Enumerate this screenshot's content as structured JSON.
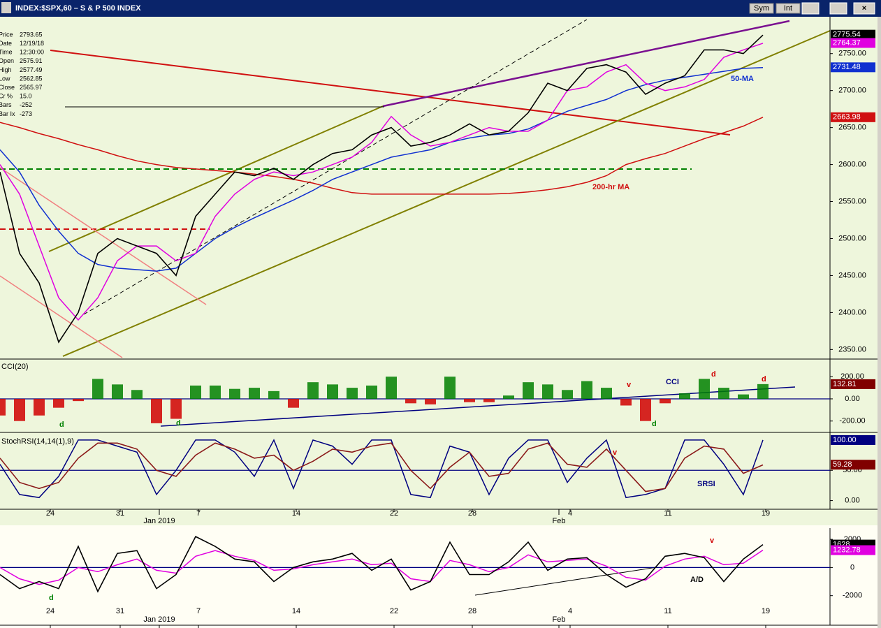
{
  "window": {
    "buttons": [
      "Sym",
      "Int"
    ]
  },
  "info": [
    {
      "label": "Price",
      "value": "2793.65"
    },
    {
      "label": "Date",
      "value": "12/19/18"
    },
    {
      "label": "Time",
      "value": "12:30:00"
    },
    {
      "label": "Open",
      "value": "2575.91"
    },
    {
      "label": "High",
      "value": "2577.49"
    },
    {
      "label": "Low",
      "value": "2562.85"
    },
    {
      "label": "Close",
      "value": "2565.97"
    },
    {
      "label": "Cr %",
      "value": "15.0"
    },
    {
      "label": "Bars",
      "value": "-252"
    },
    {
      "label": "Bar Ix",
      "value": "-273"
    }
  ],
  "chart_data": [
    {
      "type": "line",
      "title": "INDEX:$SPX,60 – S & P 500 INDEX",
      "xlim": [
        0,
        297
      ],
      "ylim": [
        2339,
        2796
      ],
      "yticks": [
        {
          "value": 2350,
          "label": "2350.00"
        },
        {
          "value": 2400,
          "label": "2400.00"
        },
        {
          "value": 2450,
          "label": "2450.00"
        },
        {
          "value": 2500,
          "label": "2500.00"
        },
        {
          "value": 2550,
          "label": "2550.00"
        },
        {
          "value": 2600,
          "label": "2600.00"
        },
        {
          "value": 2650,
          "label": "2650.00"
        },
        {
          "value": 2700,
          "label": "2700.00"
        },
        {
          "value": 2750,
          "label": "2750.00"
        }
      ],
      "x": [
        0,
        7,
        14,
        21,
        28,
        35,
        42,
        49,
        56,
        63,
        70,
        77,
        84,
        91,
        98,
        105,
        112,
        119,
        126,
        133,
        140,
        147,
        154,
        161,
        168,
        175,
        182,
        189,
        196,
        203,
        210,
        217,
        224,
        231,
        238,
        245,
        252,
        259,
        266,
        273
      ],
      "series": [
        {
          "color": "#d01010",
          "values": [
            2657,
            2650,
            2642,
            2635,
            2627,
            2620,
            2612,
            2605,
            2600,
            2596,
            2594,
            2592,
            2590,
            2587,
            2584,
            2580,
            2575,
            2568,
            2562,
            2560,
            2560,
            2560,
            2560,
            2560,
            2560,
            2560,
            2561,
            2563,
            2566,
            2570,
            2576,
            2585,
            2600,
            2608,
            2615,
            2625,
            2635,
            2643,
            2652,
            2664
          ]
        },
        {
          "color": "#1030d0",
          "values": [
            2620,
            2590,
            2545,
            2510,
            2480,
            2465,
            2460,
            2458,
            2456,
            2460,
            2480,
            2500,
            2515,
            2528,
            2540,
            2552,
            2565,
            2580,
            2590,
            2600,
            2610,
            2615,
            2620,
            2630,
            2636,
            2640,
            2642,
            2648,
            2660,
            2672,
            2680,
            2688,
            2700,
            2708,
            2714,
            2718,
            2722,
            2726,
            2730,
            2731
          ]
        },
        {
          "color": "#e000e0",
          "values": [
            2600,
            2560,
            2490,
            2420,
            2390,
            2420,
            2470,
            2490,
            2490,
            2470,
            2480,
            2530,
            2560,
            2580,
            2590,
            2585,
            2590,
            2600,
            2610,
            2630,
            2665,
            2640,
            2625,
            2630,
            2640,
            2650,
            2645,
            2645,
            2660,
            2700,
            2705,
            2725,
            2735,
            2710,
            2700,
            2705,
            2715,
            2745,
            2755,
            2764
          ]
        },
        {
          "color": "#000000",
          "values": [
            2590,
            2480,
            2440,
            2360,
            2400,
            2480,
            2500,
            2490,
            2480,
            2450,
            2530,
            2560,
            2590,
            2585,
            2595,
            2580,
            2600,
            2615,
            2620,
            2640,
            2650,
            2625,
            2630,
            2640,
            2655,
            2640,
            2645,
            2670,
            2710,
            2700,
            2730,
            2735,
            2725,
            2695,
            2710,
            2720,
            2755,
            2755,
            2750,
            2775
          ]
        }
      ],
      "readouts": [
        {
          "value": 2775.54,
          "color": "#000000"
        },
        {
          "value": 2764.37,
          "color": "#e000e0"
        },
        {
          "value": 2731.48,
          "color": "#1030d0"
        },
        {
          "value": 2663.98,
          "color": "#d01010"
        }
      ],
      "annotations": [
        {
          "text": "50-MA",
          "color": "#1030d0"
        },
        {
          "text": "200-hr MA",
          "color": "#d01010"
        }
      ]
    },
    {
      "type": "bar",
      "title": "CCI(20)",
      "xlim": [
        0,
        297
      ],
      "ylim": [
        -290,
        340
      ],
      "yticks": [
        {
          "value": 200,
          "label": "200.00"
        },
        {
          "value": 0,
          "label": "0.00"
        },
        {
          "value": -200,
          "label": "-200.00"
        }
      ],
      "ref_lines": [
        0
      ],
      "pos_color": "#008000",
      "neg_color": "#d00000",
      "x": [
        0,
        7,
        14,
        21,
        28,
        35,
        42,
        49,
        56,
        63,
        70,
        77,
        84,
        91,
        98,
        105,
        112,
        119,
        126,
        133,
        140,
        147,
        154,
        161,
        168,
        175,
        182,
        189,
        196,
        203,
        210,
        217,
        224,
        231,
        238,
        245,
        252,
        259,
        266,
        273
      ],
      "values": [
        -150,
        -200,
        -150,
        -80,
        -20,
        180,
        130,
        80,
        -220,
        -180,
        120,
        120,
        90,
        100,
        70,
        -80,
        150,
        130,
        100,
        120,
        200,
        -40,
        -50,
        200,
        -30,
        -30,
        30,
        150,
        130,
        80,
        160,
        100,
        -60,
        -200,
        -40,
        50,
        180,
        100,
        40,
        133
      ],
      "readouts": [
        {
          "value": 132.81,
          "color": "#800000"
        }
      ],
      "annotations": [
        {
          "text": "CCI",
          "color": "#000080"
        },
        {
          "text": "d",
          "color": "#d00000"
        },
        {
          "text": "d",
          "color": "#d00000"
        },
        {
          "text": "v",
          "color": "#d00000"
        },
        {
          "text": "d",
          "color": "#008000"
        },
        {
          "text": "d",
          "color": "#008000"
        },
        {
          "text": "d",
          "color": "#008000"
        }
      ]
    },
    {
      "type": "line",
      "title": "StochRSI(14,14(1),9)",
      "xlim": [
        0,
        297
      ],
      "ylim": [
        -12,
        108
      ],
      "yticks": [
        {
          "value": 50,
          "label": "50.00"
        },
        {
          "value": 0,
          "label": "0.00"
        }
      ],
      "ref_lines": [
        50
      ],
      "xticks": [
        {
          "value": 18,
          "label": "24"
        },
        {
          "value": 43,
          "label": "31"
        },
        {
          "value": 71,
          "label": "7"
        },
        {
          "value": 106,
          "label": "14"
        },
        {
          "value": 141,
          "label": "22"
        },
        {
          "value": 169,
          "label": "28"
        },
        {
          "value": 204,
          "label": "4"
        },
        {
          "value": 239,
          "label": "11"
        },
        {
          "value": 274,
          "label": "19"
        }
      ],
      "months": [
        {
          "value": 57,
          "label": "Jan 2019"
        },
        {
          "value": 200,
          "label": "Feb"
        }
      ],
      "x": [
        0,
        7,
        14,
        21,
        28,
        35,
        42,
        49,
        56,
        63,
        70,
        77,
        84,
        91,
        98,
        105,
        112,
        119,
        126,
        133,
        140,
        147,
        154,
        161,
        168,
        175,
        182,
        189,
        196,
        203,
        210,
        217,
        224,
        231,
        238,
        245,
        252,
        259,
        266,
        273
      ],
      "series": [
        {
          "color": "#000080",
          "values": [
            60,
            10,
            5,
            40,
            100,
            100,
            90,
            80,
            10,
            50,
            100,
            100,
            80,
            40,
            100,
            20,
            100,
            90,
            60,
            100,
            100,
            10,
            5,
            90,
            80,
            10,
            70,
            100,
            100,
            30,
            70,
            100,
            5,
            10,
            20,
            100,
            100,
            60,
            10,
            100
          ]
        },
        {
          "color": "#8b1a1a",
          "values": [
            70,
            30,
            20,
            30,
            70,
            95,
            95,
            85,
            50,
            40,
            75,
            95,
            85,
            70,
            75,
            50,
            65,
            85,
            80,
            90,
            95,
            50,
            20,
            55,
            80,
            40,
            45,
            85,
            95,
            60,
            55,
            85,
            50,
            15,
            20,
            70,
            90,
            85,
            45,
            59
          ]
        }
      ],
      "readouts": [
        {
          "value": 100,
          "label": "100.00",
          "color": "#000080"
        },
        {
          "value": 59.28,
          "color": "#800000"
        }
      ],
      "annotations": [
        {
          "text": "v",
          "color": "#d00000"
        },
        {
          "text": "SRSI",
          "color": "#000080"
        }
      ]
    },
    {
      "type": "line",
      "xlim": [
        0,
        297
      ],
      "ylim": [
        -4000,
        2600
      ],
      "yticks": [
        2000,
        0,
        -2000
      ],
      "ref_lines": [
        0
      ],
      "xticks": [
        {
          "value": 18,
          "label": "24"
        },
        {
          "value": 43,
          "label": "31"
        },
        {
          "value": 71,
          "label": "7"
        },
        {
          "value": 106,
          "label": "14"
        },
        {
          "value": 141,
          "label": "22"
        },
        {
          "value": 169,
          "label": "28"
        },
        {
          "value": 204,
          "label": "4"
        },
        {
          "value": 239,
          "label": "11"
        },
        {
          "value": 274,
          "label": "19"
        }
      ],
      "months": [
        {
          "value": 57,
          "label": "Jan 2019"
        },
        {
          "value": 200,
          "label": "Feb"
        }
      ],
      "x": [
        0,
        7,
        14,
        21,
        28,
        35,
        42,
        49,
        56,
        63,
        70,
        77,
        84,
        91,
        98,
        105,
        112,
        119,
        126,
        133,
        140,
        147,
        154,
        161,
        168,
        175,
        182,
        189,
        196,
        203,
        210,
        217,
        224,
        231,
        238,
        245,
        252,
        259,
        266,
        273
      ],
      "series": [
        {
          "color": "#e000e0",
          "values": [
            0,
            -800,
            -1200,
            -900,
            0,
            -300,
            200,
            600,
            -200,
            -400,
            800,
            1200,
            800,
            500,
            -200,
            -100,
            200,
            400,
            600,
            200,
            300,
            -800,
            -1000,
            500,
            200,
            -300,
            0,
            900,
            400,
            500,
            600,
            100,
            -700,
            -900,
            100,
            600,
            800,
            200,
            300,
            1233
          ]
        },
        {
          "color": "#000000",
          "values": [
            -500,
            -1500,
            -1000,
            -1500,
            1500,
            -1700,
            1000,
            1200,
            -1500,
            -500,
            2200,
            1500,
            600,
            400,
            -1000,
            0,
            400,
            600,
            1000,
            -200,
            600,
            -1600,
            -1000,
            1800,
            -500,
            -500,
            400,
            1800,
            -200,
            600,
            700,
            -500,
            -1400,
            -800,
            800,
            1000,
            700,
            -1000,
            600,
            1628
          ]
        }
      ],
      "readouts": [
        {
          "value": 1628,
          "color": "#000000"
        },
        {
          "value": 1232.78,
          "color": "#e000e0"
        }
      ],
      "annotations": [
        {
          "text": "d",
          "color": "#008000"
        },
        {
          "text": "v",
          "color": "#d00000"
        },
        {
          "text": "A/D",
          "color": "#000000"
        }
      ]
    }
  ]
}
